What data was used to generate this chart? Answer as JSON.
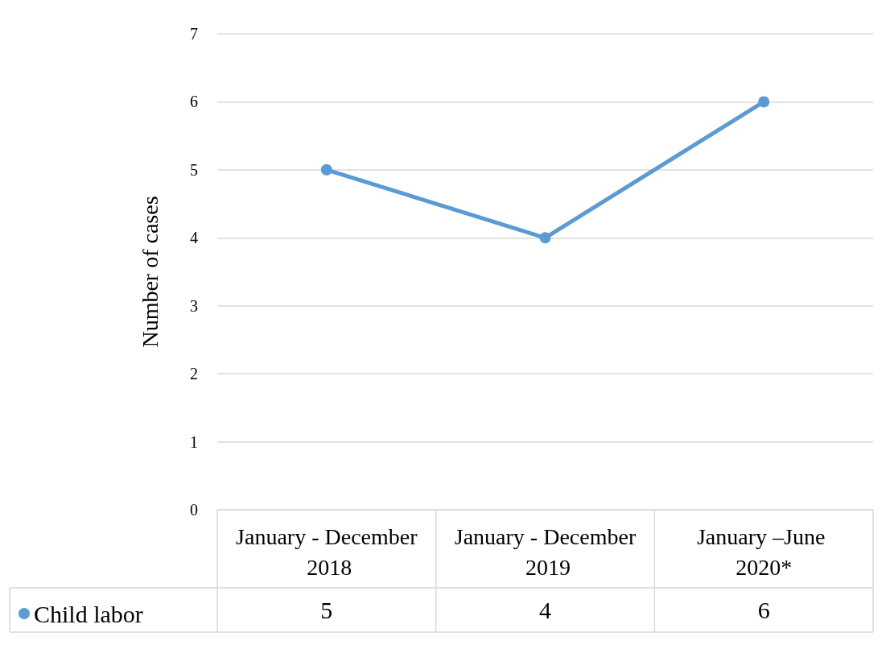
{
  "chart_data": {
    "type": "line",
    "ylabel": "Number of cases",
    "categories": [
      "January - December 2018",
      "January - December 2019",
      "January –June 2020*"
    ],
    "series": [
      {
        "name": "Child labor",
        "color": "#5b9bd5",
        "values": [
          5,
          4,
          6
        ]
      }
    ],
    "ylim": [
      0,
      7
    ],
    "yticks": [
      0,
      1,
      2,
      3,
      4,
      5,
      6,
      7
    ],
    "grid": "y",
    "legend": "bottom left",
    "marker": "circle",
    "line_style": "solid",
    "data_labels": true
  }
}
